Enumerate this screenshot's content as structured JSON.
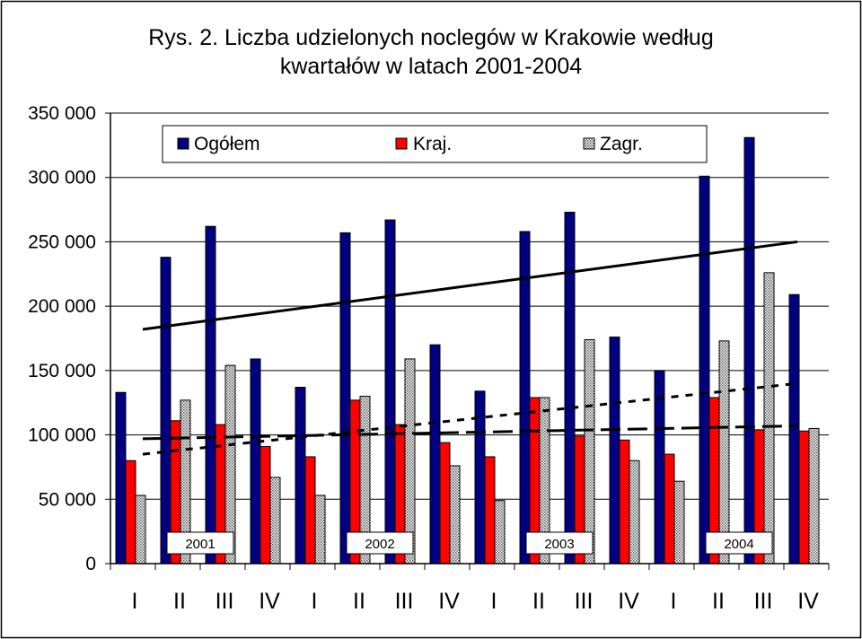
{
  "chart_data": {
    "type": "bar",
    "title_line1": "Rys. 2. Liczba udzielonych noclegów w Krakowie według",
    "title_line2": "kwartałów w latach 2001-2004",
    "categories": [
      "I",
      "II",
      "III",
      "IV",
      "I",
      "II",
      "III",
      "IV",
      "I",
      "II",
      "III",
      "IV",
      "I",
      "II",
      "III",
      "IV"
    ],
    "years": [
      "2001",
      "2002",
      "2003",
      "2004"
    ],
    "y_ticks": [
      "0",
      "50 000",
      "100 000",
      "150 000",
      "200 000",
      "250 000",
      "300 000",
      "350 000"
    ],
    "ylim": [
      0,
      350000
    ],
    "grid": true,
    "legend_position": "top",
    "series": [
      {
        "name": "Ogółem",
        "color": "#000080",
        "pattern": "solid",
        "values": [
          133000,
          238000,
          262000,
          159000,
          137000,
          257000,
          267000,
          170000,
          134000,
          258000,
          273000,
          176000,
          150000,
          301000,
          331000,
          209000
        ]
      },
      {
        "name": "Kraj.",
        "color": "#ff0000",
        "pattern": "solid",
        "values": [
          80000,
          111000,
          108000,
          91000,
          83000,
          127000,
          108000,
          94000,
          83000,
          129000,
          99000,
          96000,
          85000,
          129000,
          104000,
          103000
        ]
      },
      {
        "name": "Zagr.",
        "color": "#c0c0c0",
        "pattern": "dotted",
        "values": [
          53000,
          127000,
          154000,
          67000,
          53000,
          130000,
          159000,
          76000,
          49000,
          129000,
          174000,
          80000,
          64000,
          173000,
          226000,
          105000
        ]
      }
    ],
    "trendlines": [
      {
        "series": "Ogółem",
        "style": "solid",
        "start": 182000,
        "end": 250000
      },
      {
        "series": "Kraj.",
        "style": "long-dash",
        "start": 97000,
        "end": 107000
      },
      {
        "series": "Zagr.",
        "style": "short-dash",
        "start": 85000,
        "end": 140000
      }
    ]
  }
}
